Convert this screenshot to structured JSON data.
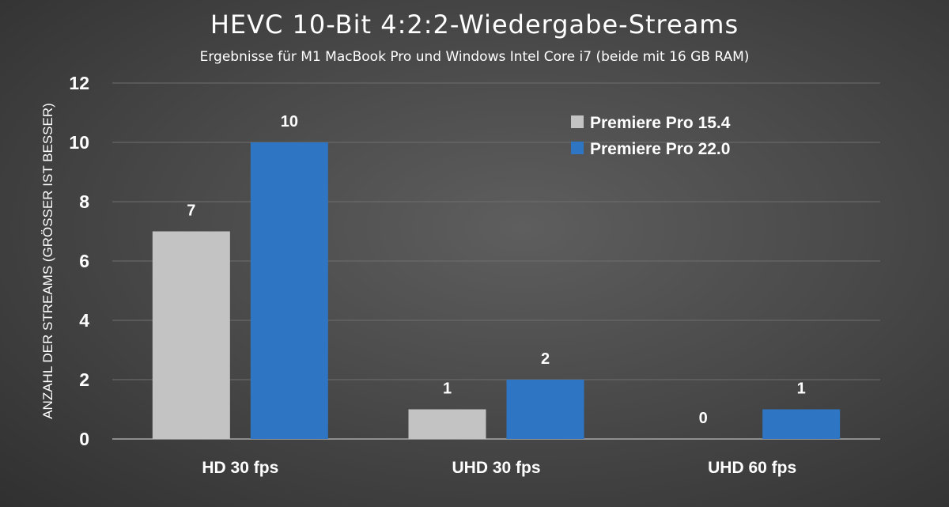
{
  "chart_data": {
    "type": "bar",
    "title": "HEVC 10-Bit 4:2:2-Wiedergabe-Streams",
    "subtitle": "Ergebnisse für M1 MacBook Pro und Windows Intel Core i7 (beide mit 16 GB RAM)",
    "xlabel": "",
    "ylabel": "ANZAHL DER STREAMS (GRÖSSER IST BESSER)",
    "categories": [
      "HD 30 fps",
      "UHD 30 fps",
      "UHD 60 fps"
    ],
    "series": [
      {
        "name": "Premiere Pro 15.4",
        "values": [
          7,
          1,
          0
        ],
        "color": "#c3c3c3"
      },
      {
        "name": "Premiere Pro 22.0",
        "values": [
          10,
          2,
          1
        ],
        "color": "#2e75c3"
      }
    ],
    "ylim": [
      0,
      12
    ],
    "yticks": [
      0,
      2,
      4,
      6,
      8,
      10,
      12
    ],
    "grid": true,
    "legend_position": "top-right",
    "data_labels": true
  }
}
